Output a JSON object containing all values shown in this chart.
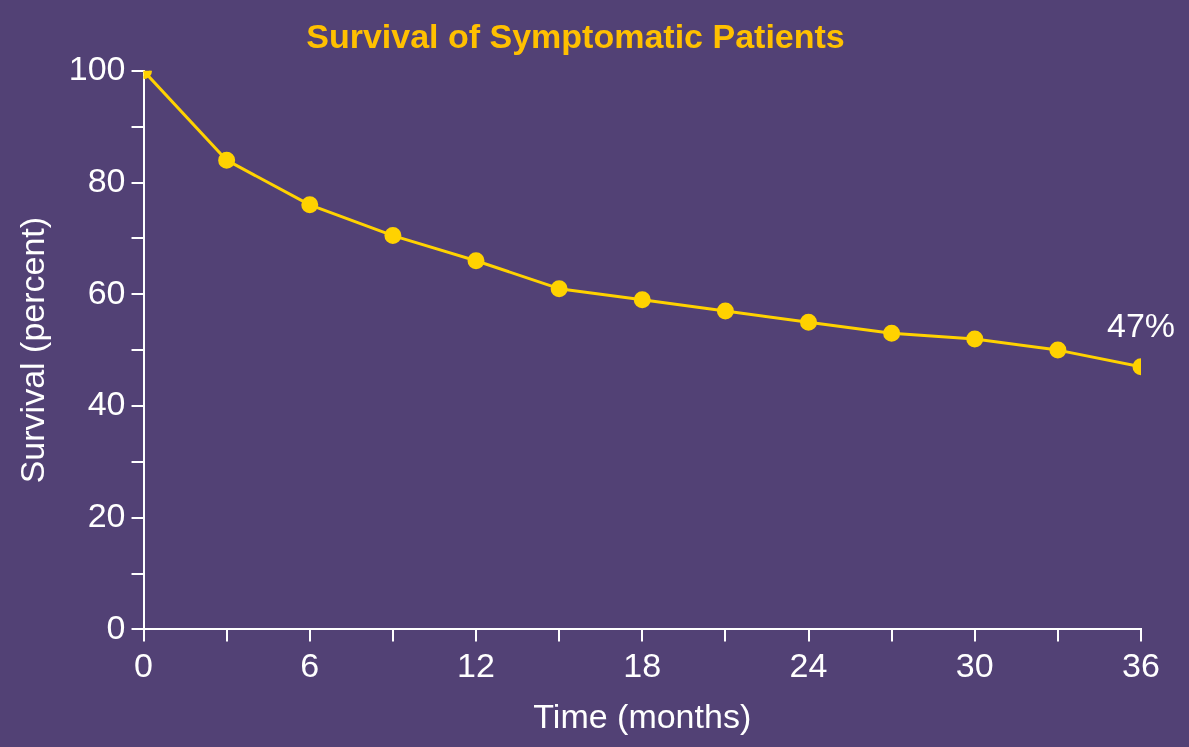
{
  "chart_data": {
    "type": "line",
    "title": "Survival of Symptomatic Patients",
    "xlabel": "Time (months)",
    "ylabel": "Survival (percent)",
    "x": [
      0,
      3,
      6,
      9,
      12,
      15,
      18,
      21,
      24,
      27,
      30,
      33,
      36
    ],
    "series": [
      {
        "color": "#ffd200",
        "values": [
          100,
          84,
          76,
          70.5,
          66,
          61,
          59,
          57,
          55,
          53,
          52,
          50,
          47
        ]
      }
    ],
    "xlim": [
      0,
      36
    ],
    "ylim": [
      0,
      100
    ],
    "xticks": [
      0,
      {
        "value": 3,
        "label": null
      },
      6,
      {
        "value": 9,
        "label": null
      },
      12,
      {
        "value": 15,
        "label": null
      },
      18,
      {
        "value": 21,
        "label": null
      },
      24,
      {
        "value": 27,
        "label": null
      },
      30,
      {
        "value": 33,
        "label": null
      },
      36
    ],
    "yticks": [
      0,
      {
        "value": 10,
        "label": null
      },
      20,
      {
        "value": 30,
        "label": null
      },
      40,
      {
        "value": 50,
        "label": null
      },
      60,
      {
        "value": 70,
        "label": null
      },
      80,
      {
        "value": 90,
        "label": null
      },
      100
    ],
    "annotations": [
      {
        "text": "47%",
        "x": 36,
        "y": 47
      }
    ],
    "grid": false,
    "legend": false,
    "marker": "circle",
    "line_style": "solid"
  }
}
